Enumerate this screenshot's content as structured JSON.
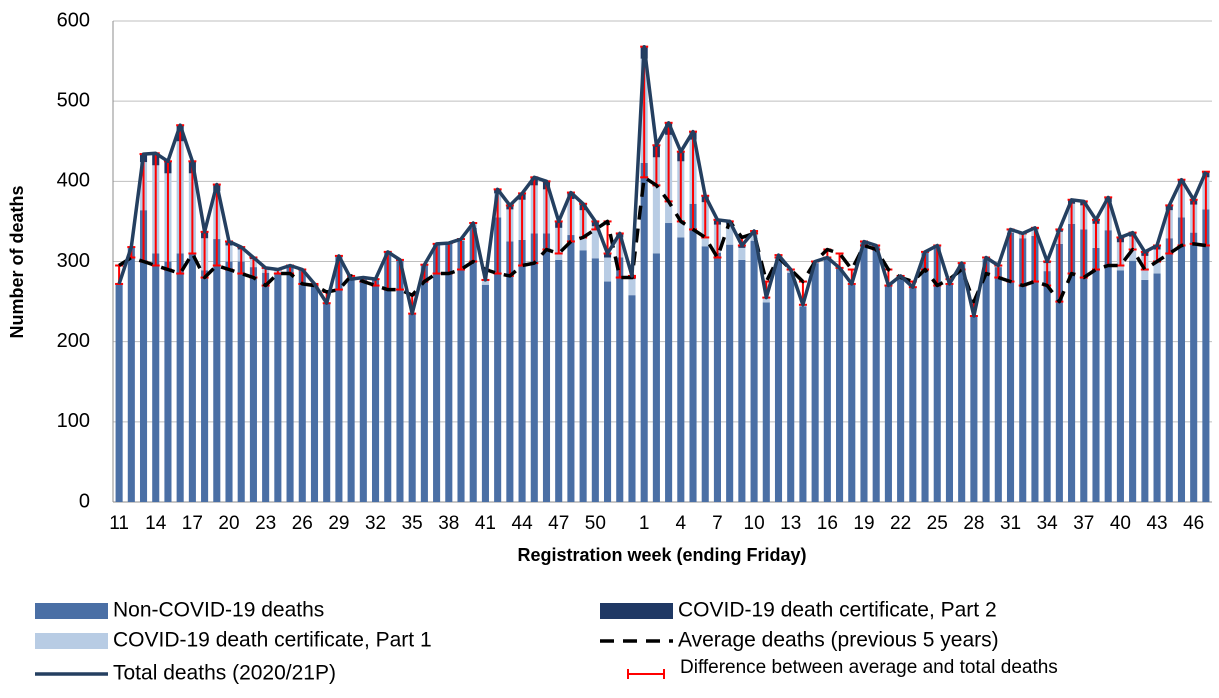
{
  "chart_data": {
    "type": "bar",
    "stacked": true,
    "x_label": "Registration week (ending Friday)",
    "y_label": "Number of deaths",
    "ylim": [
      0,
      600
    ],
    "yticks": [
      0,
      100,
      200,
      300,
      400,
      500,
      600
    ],
    "grid": true,
    "categories": [
      "11",
      null,
      null,
      "14",
      null,
      null,
      "17",
      null,
      null,
      "20",
      null,
      null,
      "23",
      null,
      null,
      "26",
      null,
      null,
      "29",
      null,
      null,
      "32",
      null,
      null,
      "35",
      null,
      null,
      "38",
      null,
      null,
      "41",
      null,
      null,
      "44",
      null,
      null,
      "47",
      null,
      null,
      "50",
      null,
      null,
      null,
      "1",
      null,
      null,
      "4",
      null,
      null,
      "7",
      null,
      null,
      "10",
      null,
      null,
      "13",
      null,
      null,
      "16",
      null,
      null,
      "19",
      null,
      null,
      "22",
      null,
      null,
      "25",
      null,
      null,
      "28",
      null,
      null,
      "31",
      null,
      null,
      "34",
      null,
      null,
      "37",
      null,
      null,
      "40",
      null,
      null,
      "43",
      null,
      null,
      "46",
      null
    ],
    "series": [
      {
        "name": "Non-COVID-19 deaths",
        "type": "bar",
        "color": "#4a6fa5",
        "values": [
          272,
          318,
          364,
          310,
          300,
          310,
          310,
          289,
          328,
          300,
          300,
          293,
          286,
          286,
          293,
          289,
          272,
          248,
          307,
          278,
          280,
          278,
          312,
          302,
          235,
          296,
          322,
          323,
          326,
          342,
          271,
          355,
          325,
          327,
          335,
          335,
          302,
          333,
          314,
          304,
          275,
          305,
          258,
          423,
          310,
          348,
          330,
          372,
          319,
          311,
          321,
          302,
          326,
          249,
          302,
          286,
          244,
          298,
          304,
          291,
          271,
          324,
          319,
          269,
          281,
          267,
          311,
          319,
          271,
          297,
          231,
          303,
          293,
          336,
          329,
          332,
          288,
          322,
          347,
          340,
          317,
          339,
          289,
          301,
          277,
          285,
          329,
          355,
          336,
          365
        ]
      },
      {
        "name": "COVID-19 death certificate, Part 1",
        "type": "bar",
        "color": "#b8cce4",
        "values": [
          0,
          0,
          60,
          110,
          110,
          140,
          100,
          40,
          60,
          20,
          15,
          10,
          5,
          3,
          2,
          1,
          0,
          0,
          0,
          0,
          0,
          0,
          0,
          0,
          0,
          0,
          0,
          0,
          2,
          5,
          5,
          30,
          40,
          50,
          60,
          55,
          40,
          45,
          50,
          40,
          30,
          25,
          20,
          130,
          120,
          110,
          95,
          80,
          55,
          35,
          25,
          15,
          10,
          5,
          5,
          3,
          2,
          2,
          1,
          1,
          1,
          1,
          1,
          1,
          1,
          1,
          1,
          1,
          1,
          1,
          1,
          2,
          2,
          3,
          5,
          8,
          10,
          15,
          25,
          30,
          30,
          35,
          35,
          30,
          30,
          30,
          35,
          40,
          35,
          40
        ]
      },
      {
        "name": "COVID-19 death certificate, Part 2",
        "type": "bar",
        "color": "#1f3864",
        "values": [
          0,
          0,
          10,
          15,
          15,
          20,
          15,
          8,
          8,
          5,
          3,
          2,
          1,
          1,
          0,
          0,
          0,
          0,
          0,
          0,
          0,
          0,
          0,
          0,
          0,
          0,
          0,
          0,
          0,
          1,
          1,
          5,
          5,
          8,
          10,
          10,
          8,
          8,
          8,
          6,
          5,
          5,
          4,
          15,
          15,
          15,
          12,
          10,
          8,
          6,
          4,
          3,
          2,
          1,
          1,
          1,
          0,
          0,
          0,
          0,
          0,
          0,
          0,
          0,
          0,
          0,
          0,
          0,
          0,
          0,
          0,
          0,
          0,
          1,
          1,
          2,
          2,
          3,
          5,
          5,
          5,
          6,
          6,
          5,
          5,
          5,
          6,
          7,
          6,
          7
        ]
      },
      {
        "name": "Total deaths (2020/21P)",
        "type": "line",
        "color": "#243f60",
        "values": [
          272,
          318,
          434,
          435,
          425,
          470,
          425,
          337,
          396,
          325,
          318,
          305,
          292,
          290,
          295,
          290,
          272,
          248,
          307,
          278,
          280,
          278,
          312,
          302,
          235,
          296,
          322,
          323,
          328,
          348,
          277,
          390,
          370,
          385,
          405,
          400,
          350,
          386,
          372,
          350,
          310,
          335,
          282,
          568,
          445,
          473,
          437,
          462,
          382,
          352,
          350,
          320,
          338,
          255,
          308,
          290,
          246,
          300,
          305,
          292,
          272,
          325,
          320,
          270,
          282,
          268,
          312,
          320,
          272,
          298,
          232,
          305,
          295,
          340,
          335,
          342,
          300,
          340,
          377,
          375,
          352,
          380,
          330,
          336,
          312,
          320,
          370,
          402,
          377,
          412
        ]
      },
      {
        "name": "Average deaths (previous 5 years)",
        "type": "line",
        "dashed": true,
        "color": "#000000",
        "values": [
          295,
          305,
          300,
          295,
          290,
          285,
          310,
          280,
          295,
          290,
          285,
          280,
          270,
          285,
          285,
          272,
          270,
          262,
          265,
          282,
          275,
          270,
          265,
          265,
          258,
          275,
          285,
          285,
          290,
          300,
          290,
          285,
          282,
          295,
          298,
          315,
          310,
          325,
          330,
          340,
          350,
          280,
          280,
          405,
          395,
          375,
          350,
          340,
          330,
          305,
          350,
          330,
          335,
          275,
          305,
          290,
          275,
          300,
          315,
          310,
          290,
          320,
          315,
          290,
          280,
          275,
          290,
          270,
          278,
          290,
          250,
          285,
          280,
          275,
          270,
          275,
          270,
          250,
          285,
          280,
          290,
          295,
          295,
          315,
          290,
          300,
          310,
          320,
          322,
          320
        ]
      }
    ],
    "difference": {
      "name": "Difference between average and total deaths",
      "color": "#ff0000"
    }
  }
}
